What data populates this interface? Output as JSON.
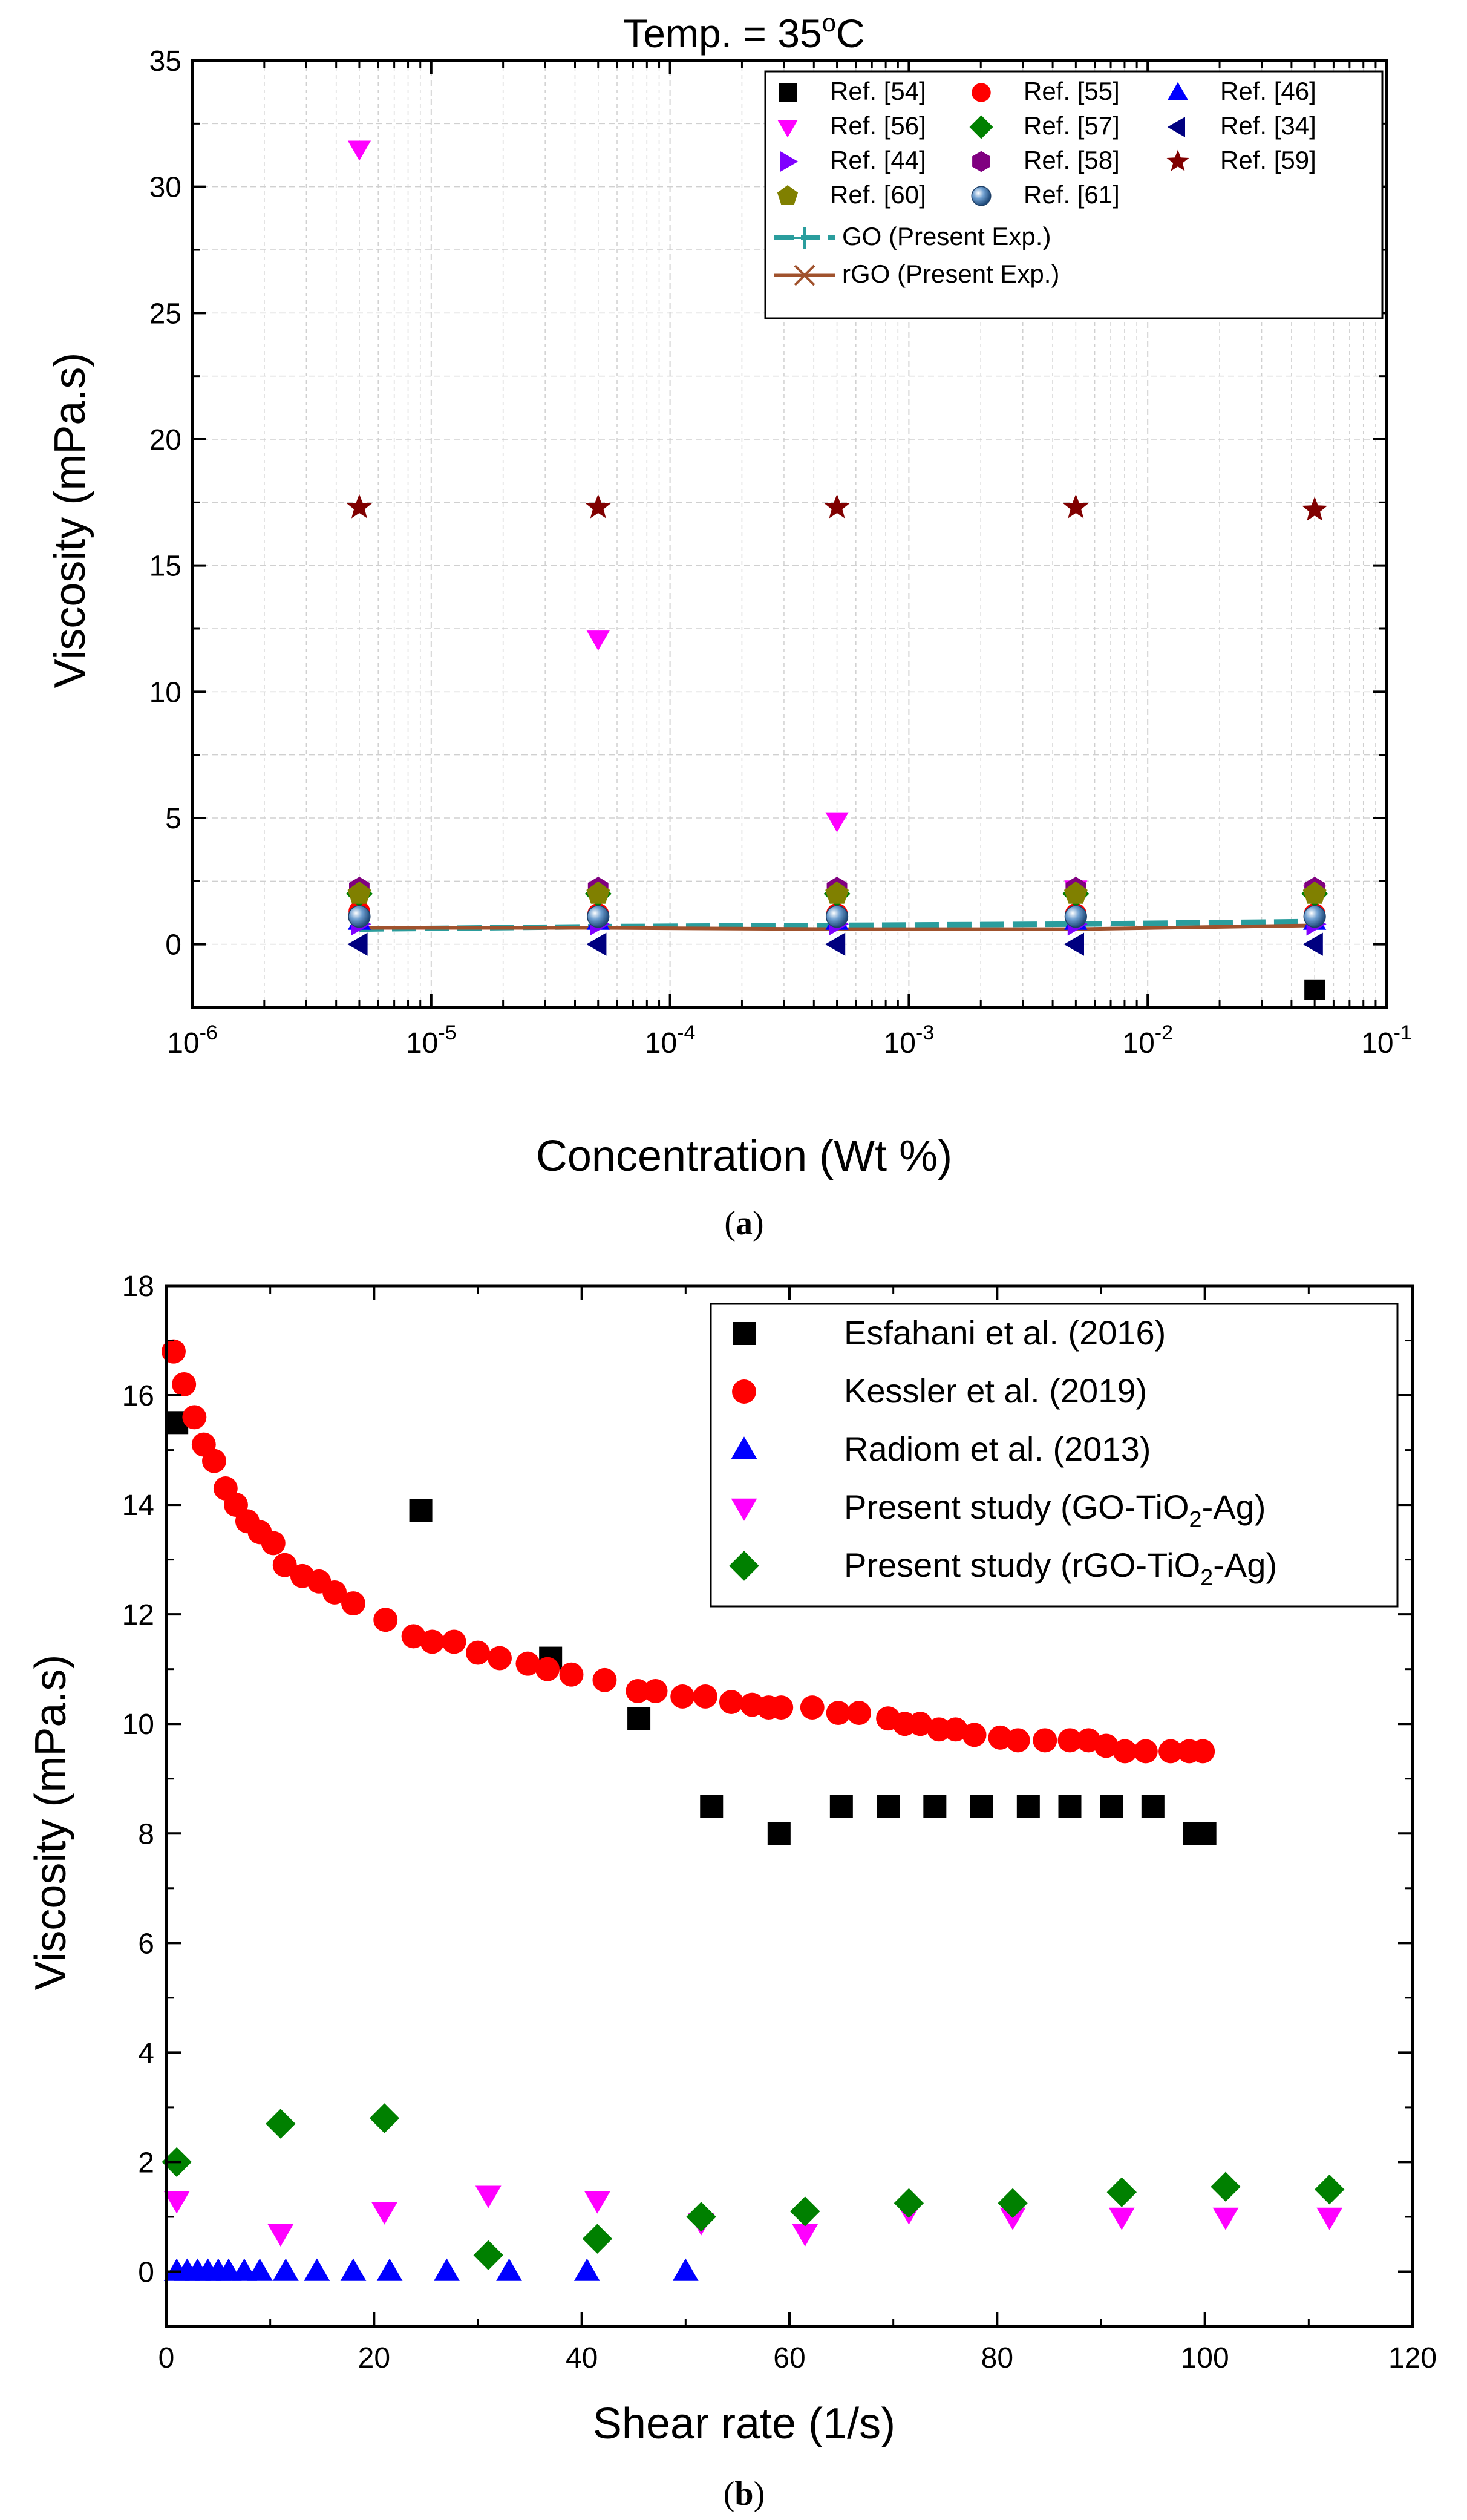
{
  "chart_data": [
    {
      "type": "scatter",
      "panel": "(a)",
      "panel_letter": "a",
      "title_main": "Temp. = 35",
      "title_sup": "o",
      "title_tail": "C",
      "xlabel": "Concentration (Wt %)",
      "ylabel": "Viscosity (mPa.s)",
      "xscale": "log",
      "xlim": [
        1e-06,
        0.1
      ],
      "ylim": [
        -2.5,
        35
      ],
      "xticks": [
        {
          "value": 1e-06,
          "base": "10",
          "exp": "-6"
        },
        {
          "value": 1e-05,
          "base": "10",
          "exp": "-5"
        },
        {
          "value": 0.0001,
          "base": "10",
          "exp": "-4"
        },
        {
          "value": 0.001,
          "base": "10",
          "exp": "-3"
        },
        {
          "value": 0.01,
          "base": "10",
          "exp": "-2"
        },
        {
          "value": 0.1,
          "base": "10",
          "exp": "-1"
        }
      ],
      "yticks": [
        0,
        5,
        10,
        15,
        20,
        25,
        30,
        35
      ],
      "grid": true,
      "legend_position": "top-right",
      "series": [
        {
          "name": "Ref. [54]",
          "marker": "square",
          "color": "#000000",
          "x": [
            0.05
          ],
          "y": [
            -1.8
          ]
        },
        {
          "name": "Ref. [55]",
          "marker": "circle",
          "color": "#ff0000",
          "x": [
            5e-06,
            5e-05,
            0.0005,
            0.005,
            0.05
          ],
          "y": [
            1.3,
            1.2,
            1.2,
            1.2,
            1.2
          ]
        },
        {
          "name": "Ref. [46]",
          "marker": "triangle-up",
          "color": "#0000ff",
          "x": [
            5e-06,
            5e-05,
            0.0005,
            0.005,
            0.05
          ],
          "y": [
            0.9,
            0.9,
            0.9,
            0.9,
            0.9
          ]
        },
        {
          "name": "Ref. [56]",
          "marker": "triangle-down",
          "color": "#ff00ff",
          "x": [
            5e-06,
            5e-05,
            0.0005,
            0.005,
            0.05
          ],
          "y": [
            31.5,
            12.1,
            4.9,
            2.2,
            2.0
          ]
        },
        {
          "name": "Ref. [57]",
          "marker": "diamond",
          "color": "#008000",
          "x": [
            5e-06,
            5e-05,
            0.0005,
            0.005,
            0.05
          ],
          "y": [
            2.0,
            2.0,
            2.0,
            2.0,
            2.0
          ]
        },
        {
          "name": "Ref. [34]",
          "marker": "triangle-left",
          "color": "#000080",
          "x": [
            5e-06,
            5e-05,
            0.0005,
            0.005,
            0.05
          ],
          "y": [
            0.0,
            0.0,
            0.0,
            0.0,
            0.0
          ]
        },
        {
          "name": "Ref. [44]",
          "marker": "triangle-right",
          "color": "#8000ff",
          "x": [
            5e-06,
            5e-05,
            0.0005,
            0.005,
            0.05
          ],
          "y": [
            0.8,
            0.8,
            0.8,
            0.8,
            0.8
          ]
        },
        {
          "name": "Ref. [58]",
          "marker": "hexagon",
          "color": "#800080",
          "x": [
            5e-06,
            5e-05,
            0.0005,
            0.005,
            0.05
          ],
          "y": [
            2.2,
            2.2,
            2.2,
            2.2,
            2.2
          ]
        },
        {
          "name": "Ref. [59]",
          "marker": "star",
          "color": "#800000",
          "x": [
            5e-06,
            5e-05,
            0.0005,
            0.005,
            0.05
          ],
          "y": [
            17.3,
            17.3,
            17.3,
            17.3,
            17.2
          ]
        },
        {
          "name": "Ref. [60]",
          "marker": "pentagon",
          "color": "#808000",
          "x": [
            5e-06,
            5e-05,
            0.0005,
            0.005,
            0.05
          ],
          "y": [
            2.0,
            2.0,
            2.0,
            2.0,
            2.0
          ]
        },
        {
          "name": "Ref. [61]",
          "marker": "sphere",
          "color": "#3b6ea5",
          "x": [
            5e-06,
            5e-05,
            0.0005,
            0.005,
            0.05
          ],
          "y": [
            1.1,
            1.1,
            1.1,
            1.1,
            1.1
          ]
        },
        {
          "name": "GO (Present Exp.)",
          "marker": "line-dash",
          "color": "#2a9d9d",
          "x": [
            5e-06,
            5e-05,
            0.0005,
            0.005,
            0.05
          ],
          "y": [
            0.6,
            0.7,
            0.75,
            0.8,
            0.9
          ]
        },
        {
          "name": "rGO (Present Exp.)",
          "marker": "line",
          "color": "#a0522d",
          "x": [
            5e-06,
            5e-05,
            0.0005,
            0.005,
            0.05
          ],
          "y": [
            0.65,
            0.65,
            0.6,
            0.6,
            0.75
          ]
        }
      ]
    },
    {
      "type": "scatter",
      "panel": "(b)",
      "panel_letter": "b",
      "xlabel": "Shear rate (1/s)",
      "ylabel": "Viscosity (mPa.s)",
      "xlim": [
        0,
        120
      ],
      "ylim": [
        -1,
        18
      ],
      "xticks": [
        0,
        20,
        40,
        60,
        80,
        100,
        120
      ],
      "yticks": [
        0,
        2,
        4,
        6,
        8,
        10,
        12,
        14,
        16,
        18
      ],
      "grid": false,
      "legend_position": "top-right",
      "series": [
        {
          "name": "Esfahani et al. (2016)",
          "marker": "square",
          "color": "#000000",
          "x": [
            1,
            24.5,
            37,
            45.5,
            52.5,
            59,
            65,
            69.5,
            74,
            78.5,
            83,
            87,
            91,
            95,
            99,
            100
          ],
          "y": [
            15.5,
            13.9,
            11.2,
            10.1,
            8.5,
            8.0,
            8.5,
            8.5,
            8.5,
            8.5,
            8.5,
            8.5,
            8.5,
            8.5,
            8.0,
            8.0
          ]
        },
        {
          "name": "Kessler et al. (2019)",
          "marker": "circle",
          "color": "#ff0000",
          "x": [
            0.7,
            1.7,
            2.7,
            3.6,
            4.6,
            5.7,
            6.7,
            7.8,
            9.0,
            10.3,
            11.4,
            13.1,
            14.7,
            16.2,
            18.0,
            21.1,
            23.8,
            25.6,
            27.7,
            30.0,
            32.1,
            34.8,
            36.7,
            39.0,
            42.2,
            45.4,
            47.1,
            49.7,
            51.9,
            54.4,
            56.4,
            58.0,
            59.2,
            62.2,
            64.7,
            66.7,
            69.5,
            71.1,
            72.6,
            74.4,
            76.0,
            77.8,
            80.3,
            82.0,
            84.6,
            87.0,
            88.8,
            90.5,
            92.3,
            94.3,
            96.7,
            98.5,
            99.8
          ],
          "y": [
            16.8,
            16.2,
            15.6,
            15.1,
            14.8,
            14.3,
            14.0,
            13.7,
            13.5,
            13.3,
            12.9,
            12.7,
            12.6,
            12.4,
            12.2,
            11.9,
            11.6,
            11.5,
            11.5,
            11.3,
            11.2,
            11.1,
            11.0,
            10.9,
            10.8,
            10.6,
            10.6,
            10.5,
            10.5,
            10.4,
            10.35,
            10.3,
            10.3,
            10.3,
            10.2,
            10.2,
            10.1,
            10.0,
            10.0,
            9.9,
            9.9,
            9.8,
            9.75,
            9.7,
            9.7,
            9.7,
            9.7,
            9.6,
            9.5,
            9.5,
            9.5,
            9.5,
            9.5
          ]
        },
        {
          "name": "Radiom et al. (2013)",
          "marker": "triangle-up",
          "color": "#0000ff",
          "x": [
            1,
            2,
            3,
            4,
            5,
            6,
            7.5,
            9,
            11.5,
            14.5,
            18,
            21.5,
            27,
            33,
            40.5,
            50
          ],
          "y": [
            0,
            0,
            0,
            0,
            0,
            0,
            0,
            0,
            0,
            0,
            0,
            0,
            0,
            0,
            0,
            0
          ]
        },
        {
          "name": "Present study (GO-TiO",
          "name_sub": "2",
          "name_tail": "-Ag)",
          "marker": "triangle-down",
          "color": "#ff00ff",
          "x": [
            1,
            11,
            21,
            31,
            41.5,
            51.5,
            61.5,
            71.5,
            81.5,
            92,
            102,
            112
          ],
          "y": [
            1.3,
            0.7,
            1.1,
            1.4,
            1.3,
            0.9,
            0.7,
            1.1,
            1.0,
            1.0,
            1.0,
            1.0
          ]
        },
        {
          "name": "Present study (rGO-TiO",
          "name_sub": "2",
          "name_tail": "-Ag)",
          "marker": "diamond",
          "color": "#008000",
          "x": [
            1,
            11,
            21,
            31,
            41.5,
            51.5,
            61.5,
            71.5,
            81.5,
            92,
            102,
            112
          ],
          "y": [
            2.0,
            2.7,
            2.8,
            0.3,
            0.6,
            1.0,
            1.1,
            1.25,
            1.25,
            1.45,
            1.55,
            1.5
          ]
        }
      ]
    }
  ]
}
